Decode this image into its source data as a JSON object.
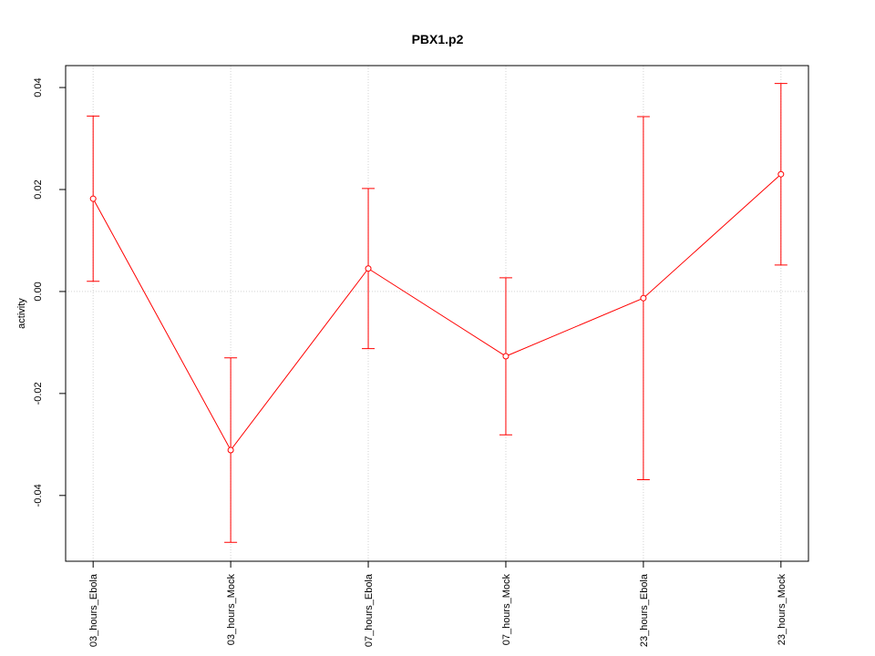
{
  "chart_data": {
    "type": "line",
    "title": "PBX1.p2",
    "y_label": "activity",
    "categories": [
      "03_hours_Ebola",
      "03_hours_Mock",
      "07_hours_Ebola",
      "07_hours_Mock",
      "23_hours_Ebola",
      "23_hours_Mock"
    ],
    "series": [
      {
        "color": "#ff0000",
        "values": [
          0.0182,
          -0.0311,
          0.0045,
          -0.0127,
          -0.0013,
          0.023
        ],
        "errors": [
          0.0162,
          0.0181,
          0.0157,
          0.0154,
          0.0356,
          0.0178
        ]
      }
    ],
    "ylim": [
      -0.0529,
      0.0443
    ],
    "yticks": [
      -0.04,
      -0.02,
      {
        "value": 0,
        "label": "0.00"
      },
      0.02,
      0.04
    ],
    "reference_line": 0,
    "grid": true
  }
}
